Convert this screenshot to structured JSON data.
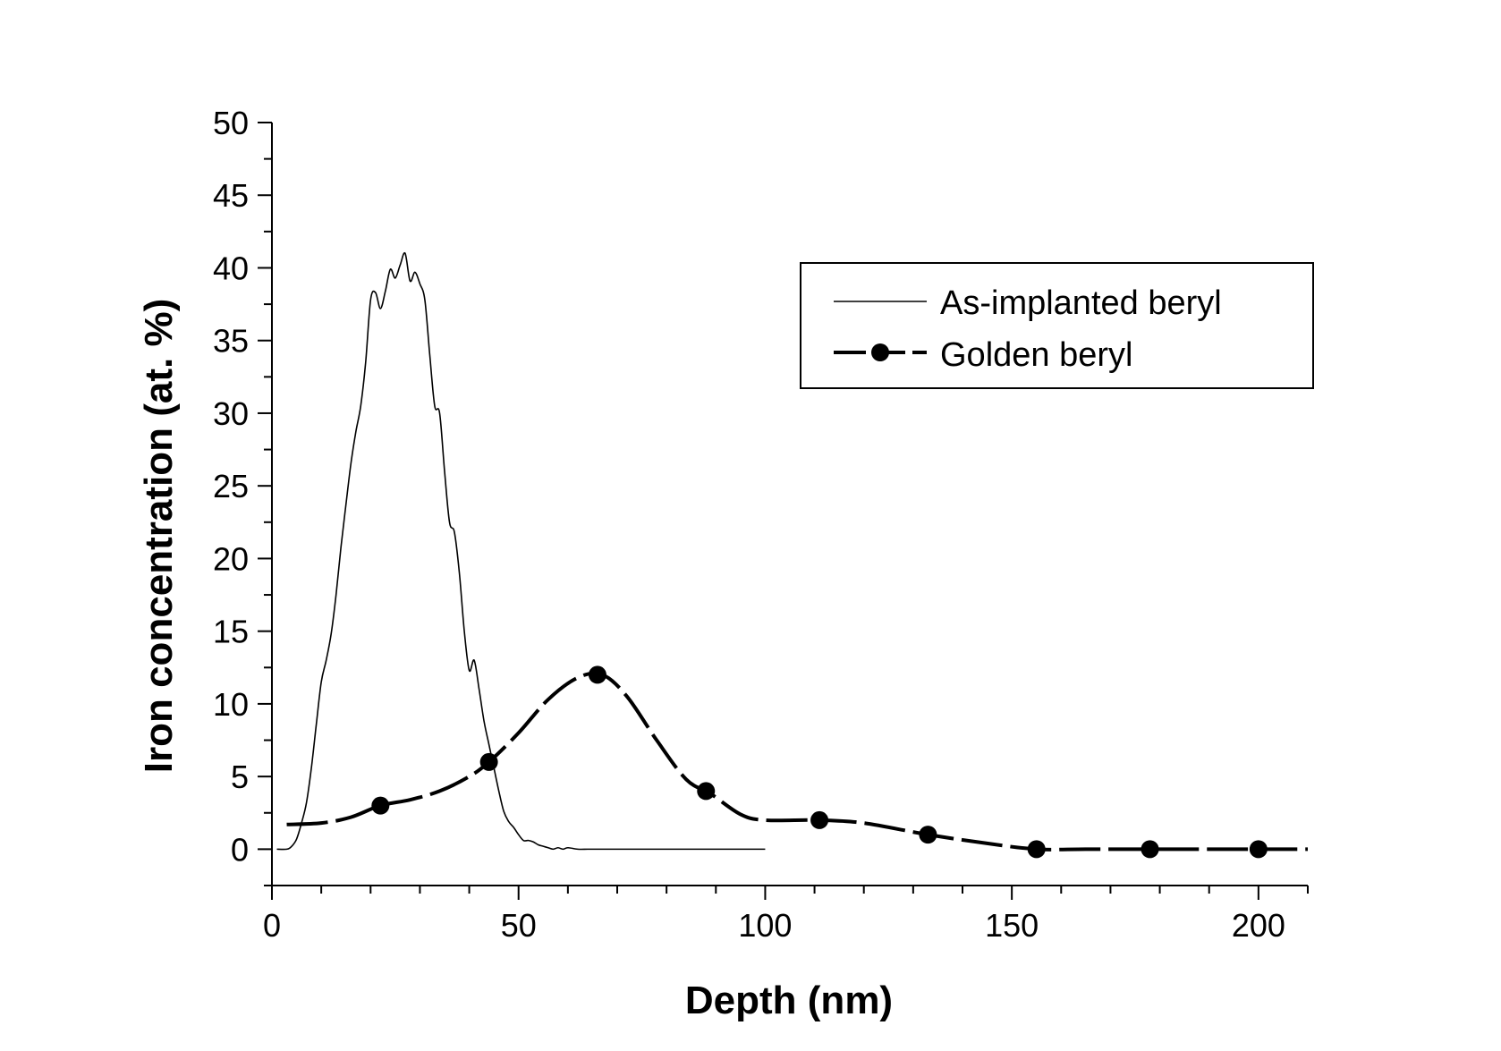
{
  "chart_data": {
    "type": "line",
    "title": "",
    "xlabel": "Depth (nm)",
    "ylabel": "Iron concentration (at. %)",
    "xlim": [
      0,
      210
    ],
    "ylim": [
      -2.5,
      50
    ],
    "x_ticks": [
      0,
      50,
      100,
      150,
      200
    ],
    "y_ticks": [
      0,
      5,
      10,
      15,
      20,
      25,
      30,
      35,
      40,
      45,
      50
    ],
    "grid": false,
    "legend_position": "top-right",
    "series": [
      {
        "name": "As-implanted beryl",
        "style": "thin-line",
        "x": [
          1,
          3,
          4,
          5,
          6,
          7,
          8,
          9,
          10,
          11,
          12,
          13,
          14,
          15,
          16,
          17,
          18,
          19,
          20,
          21,
          22,
          23,
          24,
          25,
          26,
          27,
          28,
          29,
          30,
          31,
          32,
          33,
          34,
          35,
          36,
          37,
          38,
          39,
          40,
          41,
          42,
          43,
          44,
          45,
          46,
          47,
          48,
          49,
          50,
          51,
          52,
          53,
          54,
          55,
          56,
          57,
          58,
          59,
          60,
          62,
          64,
          66,
          68,
          70,
          75,
          80,
          90,
          100
        ],
        "y": [
          0,
          0,
          0.2,
          0.7,
          1.8,
          3.2,
          5.6,
          8.6,
          11.5,
          13.0,
          14.8,
          17.5,
          20.8,
          23.7,
          26.5,
          28.7,
          30.5,
          33.5,
          37.8,
          38.3,
          37.2,
          38.4,
          39.9,
          39.3,
          40.2,
          41.0,
          39.1,
          39.7,
          38.9,
          37.8,
          34.0,
          30.5,
          30.0,
          26.0,
          22.5,
          21.8,
          19.0,
          15.0,
          12.3,
          13.0,
          11.0,
          8.8,
          7.2,
          5.6,
          4.0,
          2.6,
          1.9,
          1.5,
          1.0,
          0.6,
          0.6,
          0.5,
          0.3,
          0.2,
          0.1,
          0.0,
          0.1,
          0.0,
          0.1,
          0.0,
          0.0,
          0.0,
          0.0,
          0.0,
          0.0,
          0.0,
          0.0,
          0.0
        ]
      },
      {
        "name": "Golden beryl",
        "style": "thick-dashed-with-markers",
        "x": [
          3,
          10,
          16,
          22,
          28,
          34,
          40,
          44,
          50,
          56,
          62,
          67,
          72,
          78,
          84,
          89,
          95,
          100,
          111,
          120,
          133,
          145,
          155,
          165,
          178,
          190,
          200,
          210
        ],
        "y": [
          1.7,
          1.8,
          2.2,
          3.0,
          3.4,
          4.0,
          5.0,
          6.0,
          8.0,
          10.3,
          11.8,
          12.0,
          10.5,
          7.5,
          4.8,
          3.8,
          2.4,
          2.0,
          2.0,
          1.8,
          1.0,
          0.4,
          0.0,
          0.0,
          0.0,
          0.0,
          0.0,
          0.0
        ],
        "markers": {
          "x": [
            22,
            44,
            66,
            88,
            111,
            133,
            155,
            178,
            200
          ],
          "y": [
            3,
            6,
            12,
            4,
            2,
            1,
            0,
            0,
            0
          ]
        }
      }
    ]
  }
}
